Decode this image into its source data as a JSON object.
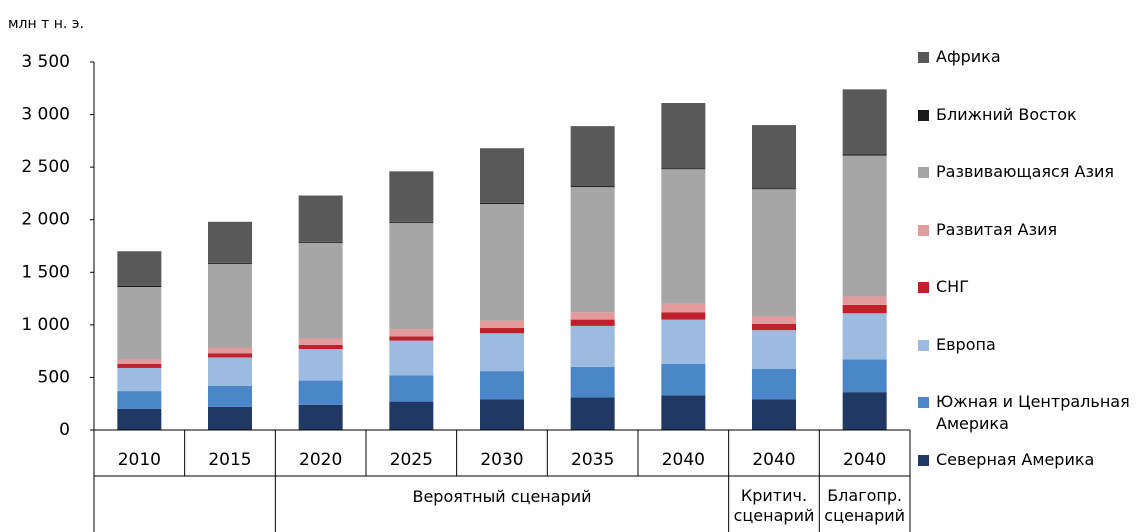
{
  "chart_data": {
    "type": "stacked_bar",
    "y_axis_label": "млн т н. э.",
    "categories": [
      "2010",
      "2015",
      "2020",
      "2025",
      "2030",
      "2035",
      "2040",
      "2040",
      "2040"
    ],
    "groups": [
      {
        "label": null,
        "span": 2
      },
      {
        "label": "Вероятный сценарий",
        "span": 5
      },
      {
        "label": "Критич. сценарий",
        "span": 1
      },
      {
        "label": "Благопр. сценарий",
        "span": 1
      }
    ],
    "series": [
      {
        "name": "Северная Америка",
        "color": "#1f3864",
        "values": [
          200,
          220,
          240,
          270,
          290,
          310,
          330,
          290,
          360
        ]
      },
      {
        "name": "Южная и Центральная Америка",
        "color": "#4a86c8",
        "values": [
          170,
          200,
          230,
          250,
          270,
          290,
          300,
          290,
          310
        ]
      },
      {
        "name": "Европа",
        "color": "#9dbbe0",
        "values": [
          220,
          270,
          300,
          330,
          360,
          390,
          420,
          370,
          440
        ]
      },
      {
        "name": "СНГ",
        "color": "#c0202a",
        "values": [
          40,
          40,
          40,
          40,
          50,
          60,
          70,
          60,
          80
        ]
      },
      {
        "name": "Развитая Азия",
        "color": "#e39a9a",
        "values": [
          40,
          50,
          60,
          70,
          70,
          70,
          80,
          70,
          80
        ]
      },
      {
        "name": "Развивающаяся Азия",
        "color": "#a6a6a6",
        "values": [
          690,
          800,
          910,
          1010,
          1110,
          1190,
          1280,
          1210,
          1340
        ]
      },
      {
        "name": "Ближний Восток",
        "color": "#1a1a1a",
        "values": [
          10,
          10,
          10,
          10,
          10,
          10,
          10,
          10,
          10
        ]
      },
      {
        "name": "Африка",
        "color": "#595959",
        "values": [
          330,
          390,
          440,
          480,
          520,
          570,
          620,
          600,
          620
        ]
      }
    ],
    "ylim": [
      0,
      3500
    ],
    "yticks": [
      0,
      500,
      {
        "value": 1000,
        "label": "1 000"
      },
      {
        "value": 1500,
        "label": "1 500"
      },
      {
        "value": 2000,
        "label": "2 000"
      },
      {
        "value": 2500,
        "label": "2 500"
      },
      {
        "value": 3000,
        "label": "3 000"
      },
      {
        "value": 3500,
        "label": "3 500"
      }
    ],
    "legend": "right"
  }
}
